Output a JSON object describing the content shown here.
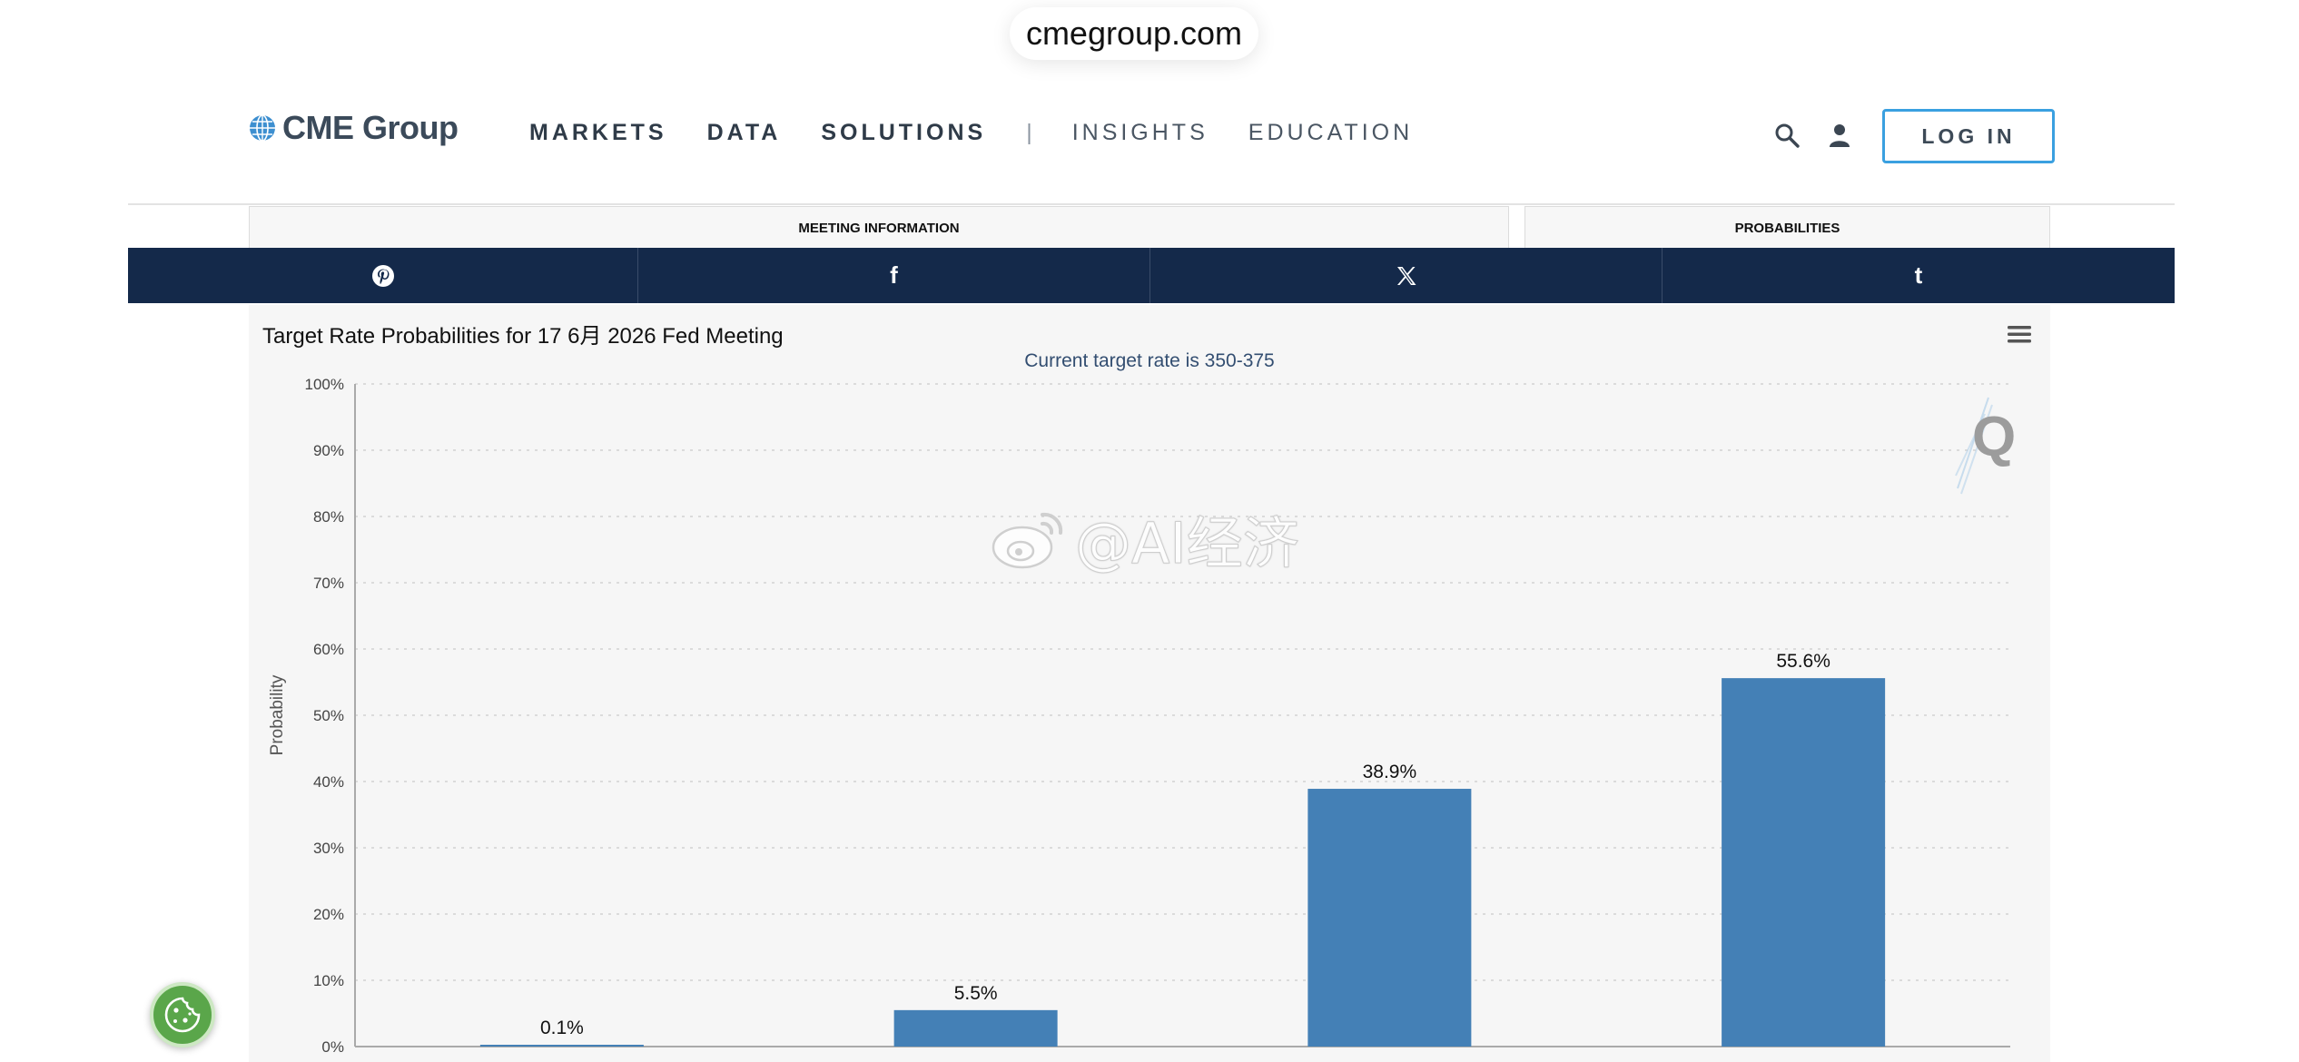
{
  "browser": {
    "url": "cmegroup.com"
  },
  "header": {
    "logo_text": "CME Group",
    "nav": [
      {
        "label": "MARKETS",
        "weight": "bold"
      },
      {
        "label": "DATA",
        "weight": "bold"
      },
      {
        "label": "SOLUTIONS",
        "weight": "bold"
      },
      {
        "label": "|",
        "weight": "sep"
      },
      {
        "label": "INSIGHTS",
        "weight": "light"
      },
      {
        "label": "EDUCATION",
        "weight": "light"
      }
    ],
    "login_label": "LOG IN",
    "icons": {
      "search": "search-icon",
      "account": "user-icon"
    }
  },
  "tabs": {
    "meeting": "MEETING INFORMATION",
    "probabilities": "PROBABILITIES"
  },
  "share_bar": {
    "icons": [
      "pinterest-icon",
      "facebook-icon",
      "x-icon",
      "tumblr-icon"
    ],
    "facebook_glyph": "f",
    "tumblr_glyph": "t",
    "background": "#14294a"
  },
  "watermark": {
    "text": "@AI经济"
  },
  "colors": {
    "bar": "#4480b6",
    "subtitle": "#334e71",
    "login_border": "#3aa0e0",
    "cookie": "#5aa64a"
  },
  "chart_data": {
    "type": "bar",
    "title": "Target Rate Probabilities for 17 6月 2026 Fed Meeting",
    "subtitle": "Current target rate is 350-375",
    "ylabel": "Probability",
    "xlabel": "",
    "ylim": [
      0,
      100
    ],
    "yticks": [
      "0%",
      "10%",
      "20%",
      "30%",
      "40%",
      "50%",
      "60%",
      "70%",
      "80%",
      "90%",
      "100%"
    ],
    "grid": true,
    "values": [
      0.1,
      5.5,
      38.9,
      55.6
    ],
    "data_labels": [
      "0.1%",
      "5.5%",
      "38.9%",
      "55.6%"
    ]
  }
}
